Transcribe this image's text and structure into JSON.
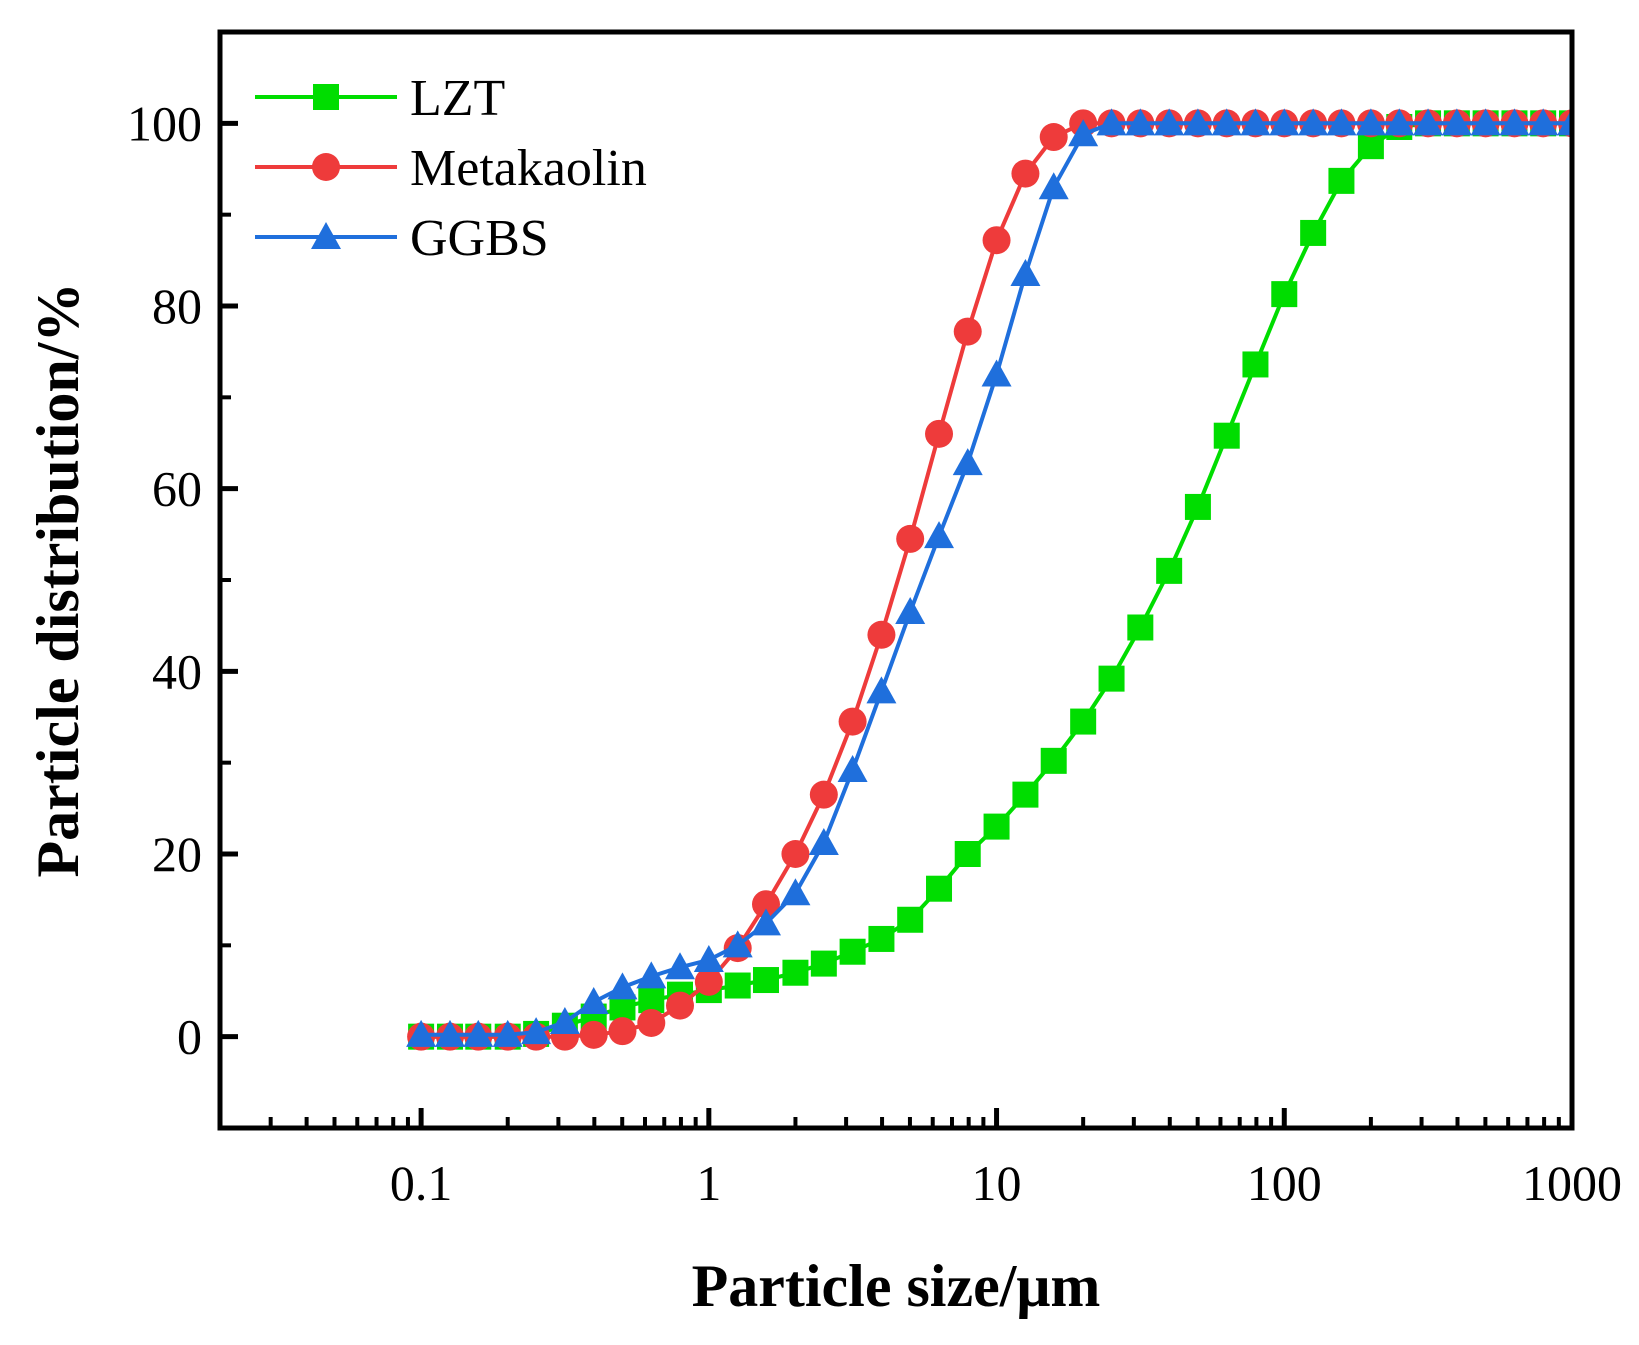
{
  "chart_data": {
    "type": "line",
    "title": "",
    "xlabel": "Particle size/μm",
    "ylabel": "Particle distribution/%",
    "xscale": "log",
    "xlim": [
      0.02,
      1000
    ],
    "ylim": [
      -10,
      110
    ],
    "xticks": [
      0.1,
      1,
      10,
      100,
      1000
    ],
    "xtick_labels": [
      "0.1",
      "1",
      "10",
      "100",
      "1000"
    ],
    "yticks": [
      0,
      20,
      40,
      60,
      80,
      100
    ],
    "ytick_labels": [
      "0",
      "20",
      "40",
      "60",
      "80",
      "100"
    ],
    "legend_position": "top-left",
    "grid": false,
    "series": [
      {
        "name": "LZT",
        "color": "#00dd00",
        "marker": "square",
        "x": [
          0.1,
          0.126,
          0.158,
          0.2,
          0.251,
          0.316,
          0.398,
          0.501,
          0.631,
          0.794,
          1.0,
          1.26,
          1.58,
          2.0,
          2.51,
          3.16,
          3.98,
          5.01,
          6.31,
          7.94,
          10.0,
          12.6,
          15.8,
          20.0,
          25.1,
          31.6,
          39.8,
          50.1,
          63.1,
          79.4,
          100,
          126,
          158,
          200,
          251,
          316,
          398,
          501,
          631,
          794,
          1000
        ],
        "y": [
          0,
          0,
          0,
          0,
          0.3,
          1.2,
          2.2,
          3.2,
          4.0,
          4.6,
          5.1,
          5.6,
          6.2,
          7.0,
          8.0,
          9.3,
          10.7,
          12.8,
          16.2,
          20.0,
          23.0,
          26.5,
          30.2,
          34.5,
          39.2,
          44.8,
          51.0,
          58.0,
          65.8,
          73.6,
          81.3,
          88.0,
          93.7,
          97.5,
          99.6,
          100,
          100,
          100,
          100,
          100,
          100
        ]
      },
      {
        "name": "Metakaolin",
        "color": "#ee3b3b",
        "marker": "circle",
        "x": [
          0.1,
          0.126,
          0.158,
          0.2,
          0.251,
          0.316,
          0.398,
          0.501,
          0.631,
          0.794,
          1.0,
          1.26,
          1.58,
          2.0,
          2.51,
          3.16,
          3.98,
          5.01,
          6.31,
          7.94,
          10.0,
          12.6,
          15.8,
          20.0,
          25.1,
          31.6,
          39.8,
          50.1,
          63.1,
          79.4,
          100,
          126,
          158,
          200,
          251,
          316,
          398,
          501,
          631,
          794,
          1000
        ],
        "y": [
          0,
          0,
          0,
          0,
          0,
          0,
          0.2,
          0.6,
          1.5,
          3.4,
          6.0,
          9.7,
          14.5,
          20.0,
          26.5,
          34.5,
          44.0,
          54.5,
          66.0,
          77.2,
          87.2,
          94.5,
          98.5,
          100,
          100,
          100,
          100,
          100,
          100,
          100,
          100,
          100,
          100,
          100,
          100,
          100,
          100,
          100,
          100,
          100,
          100
        ]
      },
      {
        "name": "GGBS",
        "color": "#1f6fdc",
        "marker": "triangle",
        "x": [
          0.1,
          0.126,
          0.158,
          0.2,
          0.251,
          0.316,
          0.398,
          0.501,
          0.631,
          0.794,
          1.0,
          1.26,
          1.58,
          2.0,
          2.51,
          3.16,
          3.98,
          5.01,
          6.31,
          7.94,
          10.0,
          12.6,
          15.8,
          20.0,
          25.1,
          31.6,
          39.8,
          50.1,
          63.1,
          79.4,
          100,
          126,
          158,
          200,
          251,
          316,
          398,
          501,
          631,
          794,
          1000
        ],
        "y": [
          0.2,
          0.2,
          0.2,
          0.2,
          0.5,
          1.6,
          3.8,
          5.4,
          6.6,
          7.6,
          8.4,
          10.0,
          12.4,
          15.7,
          21.2,
          29.2,
          37.8,
          46.5,
          54.8,
          62.8,
          72.5,
          83.5,
          93.0,
          98.8,
          100,
          100,
          100,
          100,
          100,
          100,
          100,
          100,
          100,
          100,
          100,
          100,
          100,
          100,
          100,
          100,
          100
        ]
      }
    ]
  }
}
